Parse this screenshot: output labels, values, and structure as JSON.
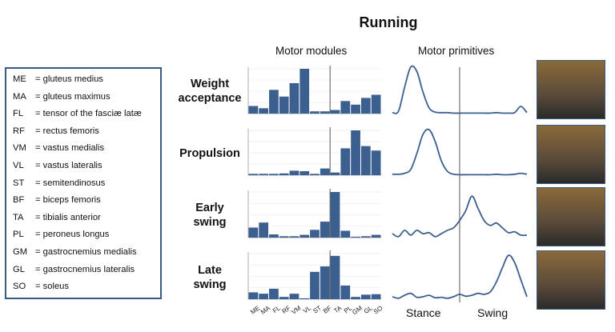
{
  "title": "Running",
  "headers": {
    "modules": "Motor modules",
    "primitives": "Motor primitives"
  },
  "legend": [
    {
      "abbr": "ME",
      "name": "= gluteus medius"
    },
    {
      "abbr": "MA",
      "name": "= gluteus maximus"
    },
    {
      "abbr": "FL",
      "name": "= tensor of the fasciæ latæ"
    },
    {
      "abbr": "RF",
      "name": "= rectus femoris"
    },
    {
      "abbr": "VM",
      "name": "= vastus medialis"
    },
    {
      "abbr": "VL",
      "name": "= vastus lateralis"
    },
    {
      "abbr": "ST",
      "name": "= semitendinosus"
    },
    {
      "abbr": "BF",
      "name": "= biceps femoris"
    },
    {
      "abbr": "TA",
      "name": "= tibialis anterior"
    },
    {
      "abbr": "PL",
      "name": "= peroneus longus"
    },
    {
      "abbr": "GM",
      "name": "= gastrocnemius medialis"
    },
    {
      "abbr": "GL",
      "name": "= gastrocnemius lateralis"
    },
    {
      "abbr": "SO",
      "name": "= soleus"
    }
  ],
  "phases": [
    {
      "line1": "Weight",
      "line2": "acceptance"
    },
    {
      "line1": "Propulsion",
      "line2": ""
    },
    {
      "line1": "Early",
      "line2": "swing"
    },
    {
      "line1": "Late",
      "line2": "swing"
    }
  ],
  "axis_labels": [
    "ME",
    "MA",
    "FL",
    "RF",
    "VM",
    "VL",
    "ST",
    "BF",
    "TA",
    "PL",
    "GM",
    "GL",
    "SO"
  ],
  "bottom_labels": {
    "stance": "Stance",
    "swing": "Swing"
  },
  "colors": {
    "bar": "#3b5f8f",
    "curve": "#3b5f8f",
    "frame": "#3b5a80"
  },
  "modules": [
    [
      0.17,
      0.12,
      0.53,
      0.38,
      0.68,
      1.0,
      0.05,
      0.05,
      0.08,
      0.28,
      0.2,
      0.35,
      0.42
    ],
    [
      0.03,
      0.03,
      0.03,
      0.04,
      0.1,
      0.09,
      0.03,
      0.15,
      0.06,
      0.6,
      1.0,
      0.65,
      0.55
    ],
    [
      0.22,
      0.33,
      0.07,
      0.03,
      0.03,
      0.06,
      0.17,
      0.35,
      1.0,
      0.15,
      0.02,
      0.03,
      0.06
    ],
    [
      0.15,
      0.12,
      0.23,
      0.05,
      0.12,
      0.02,
      0.6,
      0.72,
      0.95,
      0.3,
      0.05,
      0.1,
      0.11
    ]
  ],
  "primitives": [
    [
      0.02,
      0.05,
      0.55,
      0.97,
      0.88,
      0.45,
      0.12,
      0.03,
      0.02,
      0.02,
      0.01,
      0.01,
      0.01,
      0.01,
      0.01,
      0.01,
      0.01,
      0.02,
      0.01,
      0.01,
      0.02,
      0.15,
      0.02
    ],
    [
      0.02,
      0.02,
      0.04,
      0.12,
      0.45,
      0.85,
      0.95,
      0.7,
      0.3,
      0.08,
      0.02,
      0.01,
      0.01,
      0.01,
      0.01,
      0.01,
      0.01,
      0.02,
      0.01,
      0.01,
      0.02,
      0.04,
      0.02
    ],
    [
      0.08,
      0.02,
      0.15,
      0.05,
      0.15,
      0.08,
      0.1,
      0.02,
      0.08,
      0.15,
      0.2,
      0.35,
      0.55,
      0.85,
      0.6,
      0.35,
      0.25,
      0.3,
      0.2,
      0.1,
      0.12,
      0.05,
      0.05
    ],
    [
      0.05,
      0.02,
      0.08,
      0.12,
      0.04,
      0.05,
      0.08,
      0.03,
      0.04,
      0.02,
      0.05,
      0.1,
      0.06,
      0.08,
      0.12,
      0.1,
      0.15,
      0.35,
      0.65,
      0.9,
      0.75,
      0.4,
      0.05
    ]
  ]
}
